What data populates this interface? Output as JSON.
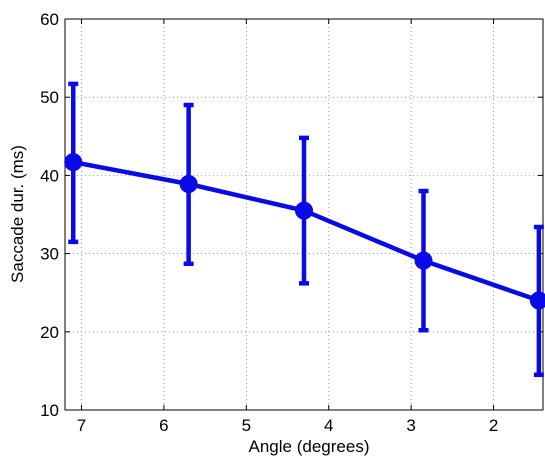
{
  "chart_data": {
    "type": "line",
    "title": "",
    "xlabel": "Angle (degrees)",
    "ylabel": "Saccade dur. (ms)",
    "x_reversed": true,
    "xlim": [
      7.2,
      1.4
    ],
    "ylim": [
      10,
      60
    ],
    "xticks": [
      7,
      6,
      5,
      4,
      3,
      2
    ],
    "yticks": [
      10,
      20,
      30,
      40,
      50,
      60
    ],
    "grid": true,
    "grid_style": "dotted",
    "legend": "none",
    "series": [
      {
        "color": "#0a0ae6",
        "marker": "circle",
        "x": [
          7.1,
          5.7,
          4.3,
          2.85,
          1.45
        ],
        "y": [
          41.7,
          38.9,
          35.5,
          29.1,
          24.0
        ],
        "error_low": [
          31.5,
          28.7,
          26.2,
          20.2,
          14.5
        ],
        "error_high": [
          51.7,
          49.0,
          44.8,
          38.0,
          33.4
        ]
      }
    ]
  }
}
